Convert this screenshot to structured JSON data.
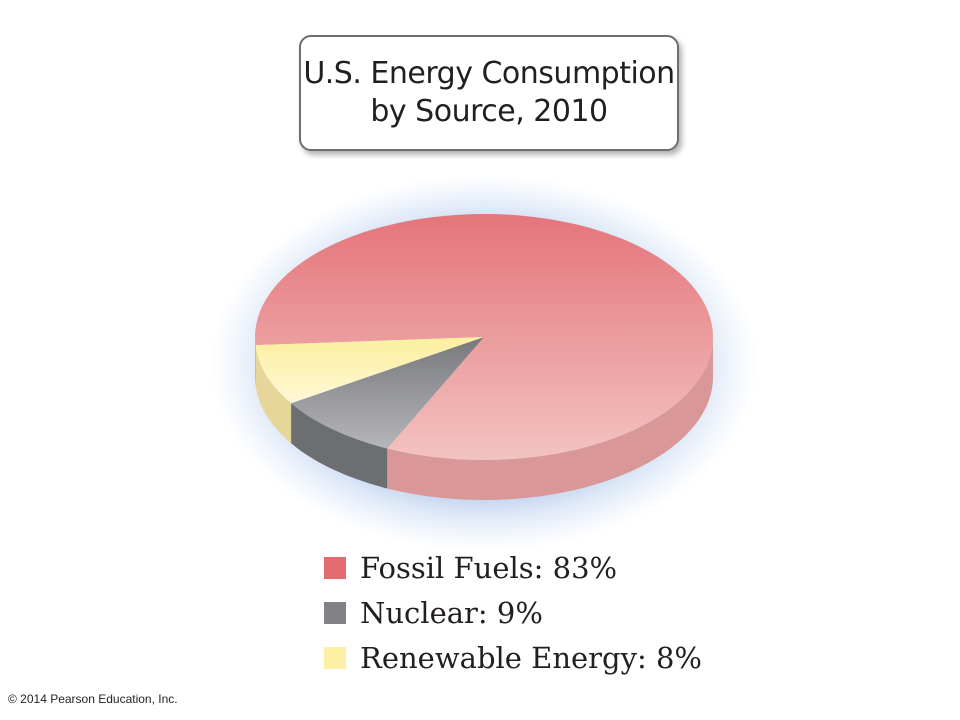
{
  "chart_data": {
    "type": "pie",
    "title": "U.S. Energy Consumption by Source, 2010",
    "title_lines": [
      "U.S. Energy Consumption",
      "by Source, 2010"
    ],
    "legend_position": "bottom",
    "slices": [
      {
        "label": "Fossil Fuels",
        "value": 83,
        "legend_text": "Fossil Fuels: 83%",
        "color": "#e36b6f"
      },
      {
        "label": "Nuclear",
        "value": 9,
        "legend_text": "Nuclear: 9%",
        "color": "#808285"
      },
      {
        "label": "Renewable Energy",
        "value": 8,
        "legend_text": "Renewable Energy: 8%",
        "color": "#fdf0a6"
      }
    ]
  },
  "footer": {
    "copyright": "© 2014 Pearson Education, Inc."
  }
}
